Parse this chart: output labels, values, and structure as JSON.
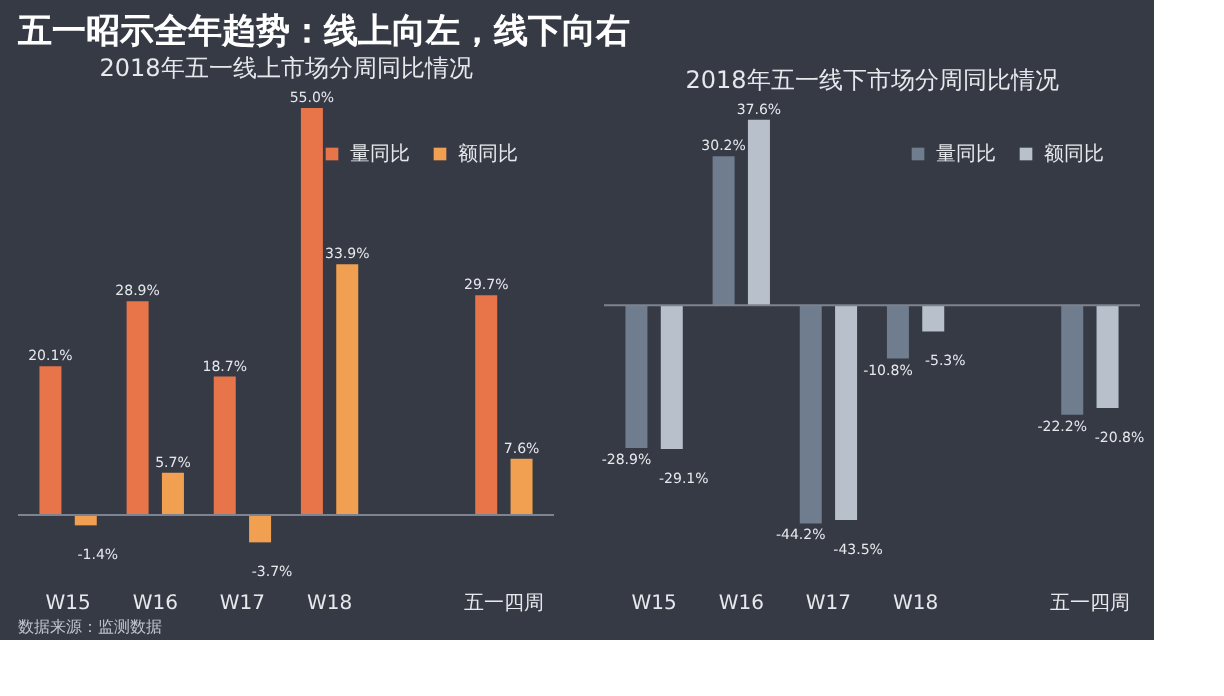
{
  "chart_data": [
    {
      "type": "bar",
      "title": "2018年五一线上市场分周同比情况",
      "categories": [
        "W15",
        "W16",
        "W17",
        "W18",
        null,
        "五一四周"
      ],
      "series": [
        {
          "name": "量同比",
          "color": "#e8744a",
          "values": [
            20.1,
            28.9,
            18.7,
            55.0,
            null,
            29.7
          ],
          "value_labels": [
            "20.1%",
            "28.9%",
            "18.7%",
            "55.0%",
            null,
            "29.7%"
          ]
        },
        {
          "name": "额同比",
          "color": "#f0a050",
          "values": [
            -1.4,
            5.7,
            -3.7,
            33.9,
            null,
            7.6
          ],
          "value_labels": [
            "-1.4%",
            "5.7%",
            "-3.7%",
            "33.9%",
            null,
            "7.6%"
          ]
        }
      ],
      "tick_labels": "x",
      "legend": "top right",
      "grid": false,
      "annotations": [
        "五一昭示全年趋势：线上向左，线下向右",
        "数据来源：监测数据"
      ]
    },
    {
      "type": "bar",
      "title": "2018年五一线下市场分周同比情况",
      "categories": [
        "W15",
        "W16",
        "W17",
        "W18",
        null,
        "五一四周"
      ],
      "series": [
        {
          "name": "量同比",
          "color": "#6f7d8e",
          "values": [
            -28.9,
            30.2,
            -44.2,
            -10.8,
            null,
            -22.2
          ],
          "value_labels": [
            "-28.9%",
            "30.2%",
            "-44.2%",
            "-10.8%",
            null,
            "-22.2%"
          ]
        },
        {
          "name": "额同比",
          "color": "#b8c0cc",
          "values": [
            -29.1,
            37.6,
            -43.5,
            -5.3,
            null,
            -20.8
          ],
          "value_labels": [
            "-29.1%",
            "37.6%",
            "-43.5%",
            "-5.3%",
            null,
            "-20.8%"
          ]
        }
      ],
      "tick_labels": "x",
      "legend": "top right",
      "grid": false
    }
  ]
}
